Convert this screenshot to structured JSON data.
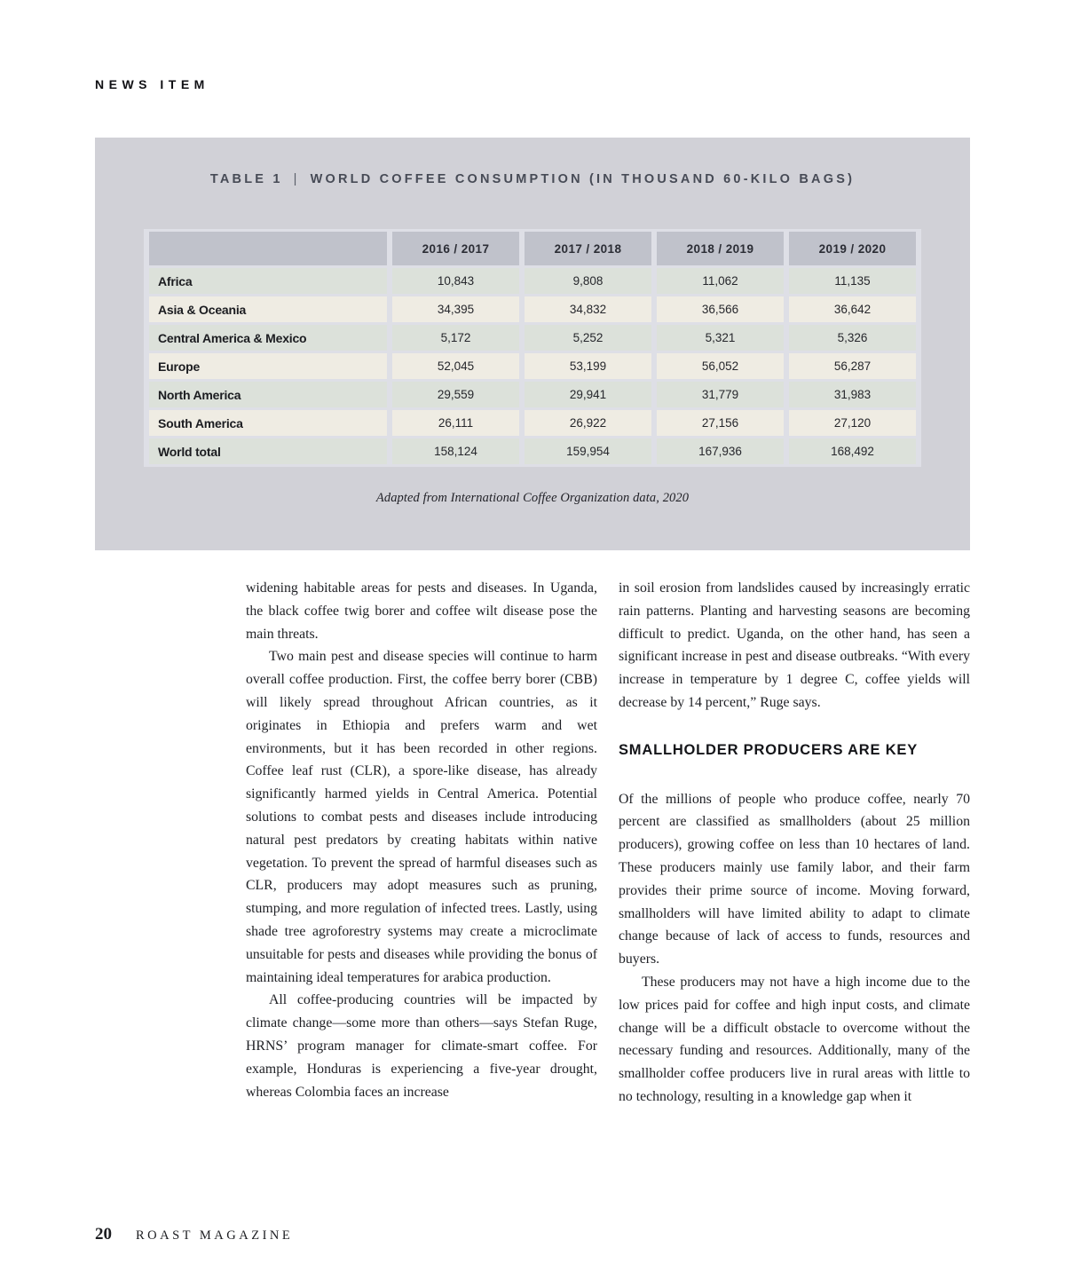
{
  "eyebrow": "NEWS ITEM",
  "table_panel": {
    "title_label": "TABLE 1",
    "title_divider": "|",
    "title_text": "WORLD COFFEE CONSUMPTION (IN THOUSAND 60-KILO BAGS)",
    "columns": [
      "2016 / 2017",
      "2017 / 2018",
      "2018 / 2019",
      "2019 / 2020"
    ],
    "rows": [
      {
        "label": "Africa",
        "values": [
          "10,843",
          "9,808",
          "11,062",
          "11,135"
        ]
      },
      {
        "label": "Asia & Oceania",
        "values": [
          "34,395",
          "34,832",
          "36,566",
          "36,642"
        ]
      },
      {
        "label": "Central America & Mexico",
        "values": [
          "5,172",
          "5,252",
          "5,321",
          "5,326"
        ]
      },
      {
        "label": "Europe",
        "values": [
          "52,045",
          "53,199",
          "56,052",
          "56,287"
        ]
      },
      {
        "label": "North America",
        "values": [
          "29,559",
          "29,941",
          "31,779",
          "31,983"
        ]
      },
      {
        "label": "South America",
        "values": [
          "26,111",
          "26,922",
          "27,156",
          "27,120"
        ]
      },
      {
        "label": "World total",
        "values": [
          "158,124",
          "159,954",
          "167,936",
          "168,492"
        ]
      }
    ],
    "caption": "Adapted from International Coffee Organization data, 2020"
  },
  "article": {
    "left_column": [
      {
        "type": "p",
        "indent": false,
        "text": "widening habitable areas for pests and diseases. In Uganda, the black coffee twig borer and coffee wilt disease pose the main threats."
      },
      {
        "type": "p",
        "indent": true,
        "text": "Two main pest and disease species will continue to harm overall coffee production. First, the coffee berry borer (CBB) will likely spread throughout African countries, as it originates in Ethiopia and prefers warm and wet environments, but it has been recorded in other regions. Coffee leaf rust (CLR), a spore-like disease, has already significantly harmed yields in Central America. Potential solutions to combat pests and diseases include introducing natural pest predators by creating habitats within native vegetation. To prevent the spread of harmful diseases such as CLR, producers may adopt measures such as pruning, stumping, and more regulation of infected trees. Lastly, using shade tree agroforestry systems may create a microclimate unsuitable for pests and diseases while providing the bonus of maintaining ideal temperatures for arabica production."
      },
      {
        "type": "p",
        "indent": true,
        "text": "All coffee-producing countries will be impacted by climate change—some more than others—says Stefan Ruge, HRNS’ program manager for climate-smart coffee. For example, Honduras is experiencing a five-year drought, whereas Colombia faces an increase"
      }
    ],
    "right_column": [
      {
        "type": "p",
        "indent": false,
        "text": "in soil erosion from landslides caused by increasingly erratic rain patterns. Planting and harvesting seasons are becoming difficult to predict. Uganda, on the other hand, has seen a significant increase in pest and disease outbreaks. “With every increase in temperature by 1 degree C, coffee yields will decrease by 14 percent,” Ruge says."
      },
      {
        "type": "heading",
        "text": "SMALLHOLDER PRODUCERS ARE KEY"
      },
      {
        "type": "p",
        "indent": false,
        "text": "Of the millions of people who produce coffee, nearly 70 percent are classified as smallholders (about 25 million producers), growing coffee on less than 10 hectares of land. These producers mainly use family labor, and their farm provides their prime source of income. Moving forward, smallholders will have limited ability to adapt to climate change because of lack of access to funds, resources and buyers."
      },
      {
        "type": "p",
        "indent": true,
        "text": "These producers may not have a high income due to the low prices paid for coffee and high input costs, and climate change will be a difficult obstacle to overcome without the necessary funding and resources. Additionally, many of the smallholder coffee producers live in rural areas with little to no technology, resulting in a knowledge gap when it"
      }
    ]
  },
  "footer": {
    "page_number": "20",
    "magazine_name": "ROAST MAGAZINE"
  },
  "colors": {
    "panel_bg": "#d1d1d7",
    "cell_gap_bg": "#dedfe6",
    "header_cell_bg": "#c0c2cb",
    "row_green": "#dce1da",
    "row_cream": "#efece3",
    "title_color": "#474b56"
  }
}
